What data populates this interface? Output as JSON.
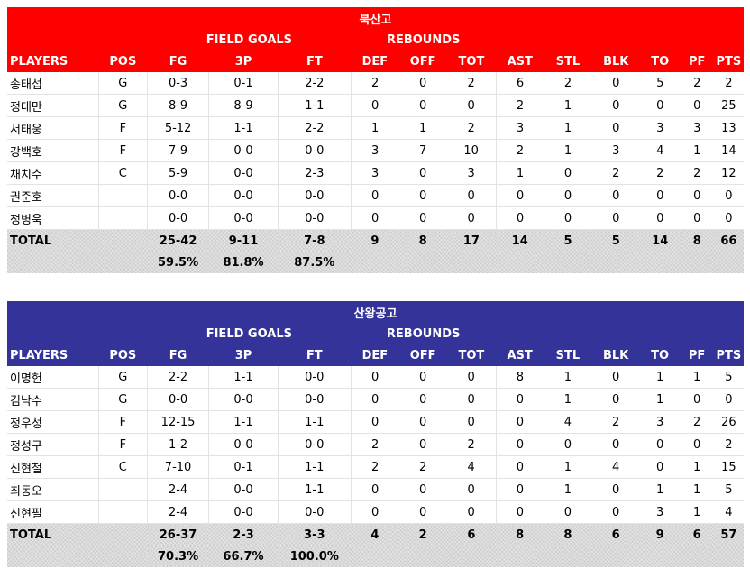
{
  "header_labels": {
    "field_goals": "FIELD GOALS",
    "rebounds": "REBOUNDS",
    "columns": [
      "PLAYERS",
      "POS",
      "FG",
      "3P",
      "FT",
      "DEF",
      "OFF",
      "TOT",
      "AST",
      "STL",
      "BLK",
      "TO",
      "PF",
      "PTS"
    ]
  },
  "colors": {
    "team_a_header": "#ff0000",
    "team_b_header": "#333399",
    "total_bg": "#d9d9d9"
  },
  "teams": [
    {
      "name": "북산고",
      "players": [
        [
          "송태섭",
          "G",
          "0-3",
          "0-1",
          "2-2",
          "2",
          "0",
          "2",
          "6",
          "2",
          "0",
          "5",
          "2",
          "2"
        ],
        [
          "정대만",
          "G",
          "8-9",
          "8-9",
          "1-1",
          "0",
          "0",
          "0",
          "2",
          "1",
          "0",
          "0",
          "0",
          "25"
        ],
        [
          "서태웅",
          "F",
          "5-12",
          "1-1",
          "2-2",
          "1",
          "1",
          "2",
          "3",
          "1",
          "0",
          "3",
          "3",
          "13"
        ],
        [
          "강백호",
          "F",
          "7-9",
          "0-0",
          "0-0",
          "3",
          "7",
          "10",
          "2",
          "1",
          "3",
          "4",
          "1",
          "14"
        ],
        [
          "채치수",
          "C",
          "5-9",
          "0-0",
          "2-3",
          "3",
          "0",
          "3",
          "1",
          "0",
          "2",
          "2",
          "2",
          "12"
        ],
        [
          "권준호",
          "",
          "0-0",
          "0-0",
          "0-0",
          "0",
          "0",
          "0",
          "0",
          "0",
          "0",
          "0",
          "0",
          "0"
        ],
        [
          "정병욱",
          "",
          "0-0",
          "0-0",
          "0-0",
          "0",
          "0",
          "0",
          "0",
          "0",
          "0",
          "0",
          "0",
          "0"
        ]
      ],
      "total": [
        "TOTAL",
        "",
        "25-42",
        "9-11",
        "7-8",
        "9",
        "8",
        "17",
        "14",
        "5",
        "5",
        "14",
        "8",
        "66"
      ],
      "percentages": [
        "59.5%",
        "81.8%",
        "87.5%"
      ]
    },
    {
      "name": "산왕공고",
      "players": [
        [
          "이명헌",
          "G",
          "2-2",
          "1-1",
          "0-0",
          "0",
          "0",
          "0",
          "8",
          "1",
          "0",
          "1",
          "1",
          "5"
        ],
        [
          "김낙수",
          "G",
          "0-0",
          "0-0",
          "0-0",
          "0",
          "0",
          "0",
          "0",
          "1",
          "0",
          "1",
          "0",
          "0"
        ],
        [
          "정우성",
          "F",
          "12-15",
          "1-1",
          "1-1",
          "0",
          "0",
          "0",
          "0",
          "4",
          "2",
          "3",
          "2",
          "26"
        ],
        [
          "정성구",
          "F",
          "1-2",
          "0-0",
          "0-0",
          "2",
          "0",
          "2",
          "0",
          "0",
          "0",
          "0",
          "0",
          "2"
        ],
        [
          "신현철",
          "C",
          "7-10",
          "0-1",
          "1-1",
          "2",
          "2",
          "4",
          "0",
          "1",
          "4",
          "0",
          "1",
          "15"
        ],
        [
          "최동오",
          "",
          "2-4",
          "0-0",
          "1-1",
          "0",
          "0",
          "0",
          "0",
          "1",
          "0",
          "1",
          "1",
          "5"
        ],
        [
          "신현필",
          "",
          "2-4",
          "0-0",
          "0-0",
          "0",
          "0",
          "0",
          "0",
          "0",
          "0",
          "3",
          "1",
          "4"
        ]
      ],
      "total": [
        "TOTAL",
        "",
        "26-37",
        "2-3",
        "3-3",
        "4",
        "2",
        "6",
        "8",
        "8",
        "6",
        "9",
        "6",
        "57"
      ],
      "percentages": [
        "70.3%",
        "66.7%",
        "100.0%"
      ]
    }
  ]
}
